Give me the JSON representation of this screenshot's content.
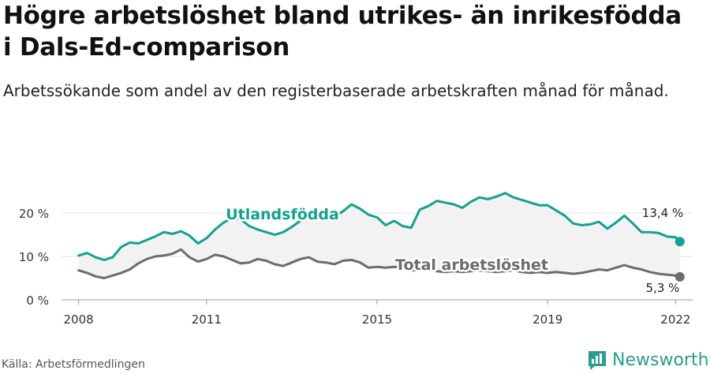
{
  "title": "Högre arbetslöshet bland utrikes- än inrikesfödda i Dals-Ed-comparison",
  "subtitle": "Arbetssökande som andel av den registerbaserade arbetskraften månad för månad.",
  "source": "Källa: Arbetsförmedlingen",
  "brand": {
    "name": "Newsworthy",
    "icon": "newsworthy-logo-icon"
  },
  "colors": {
    "foreign_born": "#14a092",
    "total": "#6b6b70",
    "area_fill": "#f2f2f2",
    "grid": "#e3e3e3"
  },
  "chart_data": {
    "type": "line",
    "x_ticks": [
      "2008",
      "2011",
      "2015",
      "2019",
      "2022"
    ],
    "y_ticks": [
      "0 %",
      "10 %",
      "20 %"
    ],
    "ylim": [
      0,
      30
    ],
    "xlim": [
      2007.6,
      2022.4
    ],
    "grid": "horizontal",
    "series": [
      {
        "name": "Utlandsfödda",
        "end_label": "13,4 %",
        "points": [
          [
            2008.0,
            10.2
          ],
          [
            2008.2,
            10.8
          ],
          [
            2008.4,
            9.8
          ],
          [
            2008.6,
            9.2
          ],
          [
            2008.8,
            9.8
          ],
          [
            2009.0,
            12.2
          ],
          [
            2009.2,
            13.2
          ],
          [
            2009.4,
            13.0
          ],
          [
            2009.6,
            13.8
          ],
          [
            2009.8,
            14.6
          ],
          [
            2010.0,
            15.6
          ],
          [
            2010.2,
            15.2
          ],
          [
            2010.4,
            15.8
          ],
          [
            2010.6,
            14.8
          ],
          [
            2010.8,
            13.0
          ],
          [
            2011.0,
            14.2
          ],
          [
            2011.2,
            16.2
          ],
          [
            2011.4,
            17.8
          ],
          [
            2011.6,
            18.8
          ],
          [
            2011.8,
            18.6
          ],
          [
            2012.0,
            17.0
          ],
          [
            2012.2,
            16.2
          ],
          [
            2012.4,
            15.6
          ],
          [
            2012.6,
            15.0
          ],
          [
            2012.8,
            15.6
          ],
          [
            2013.0,
            16.8
          ],
          [
            2013.2,
            18.2
          ],
          [
            2013.4,
            19.6
          ],
          [
            2013.6,
            19.0
          ],
          [
            2013.8,
            18.8
          ],
          [
            2014.0,
            19.2
          ],
          [
            2014.2,
            20.4
          ],
          [
            2014.4,
            22.0
          ],
          [
            2014.6,
            21.0
          ],
          [
            2014.8,
            19.6
          ],
          [
            2015.0,
            19.0
          ],
          [
            2015.2,
            17.2
          ],
          [
            2015.4,
            18.2
          ],
          [
            2015.6,
            17.0
          ],
          [
            2015.8,
            16.6
          ],
          [
            2016.0,
            20.8
          ],
          [
            2016.2,
            21.6
          ],
          [
            2016.4,
            22.8
          ],
          [
            2016.6,
            22.4
          ],
          [
            2016.8,
            22.0
          ],
          [
            2017.0,
            21.2
          ],
          [
            2017.2,
            22.6
          ],
          [
            2017.4,
            23.6
          ],
          [
            2017.6,
            23.2
          ],
          [
            2017.8,
            23.8
          ],
          [
            2018.0,
            24.6
          ],
          [
            2018.2,
            23.6
          ],
          [
            2018.4,
            23.0
          ],
          [
            2018.6,
            22.4
          ],
          [
            2018.8,
            21.8
          ],
          [
            2019.0,
            21.8
          ],
          [
            2019.2,
            20.6
          ],
          [
            2019.4,
            19.4
          ],
          [
            2019.6,
            17.6
          ],
          [
            2019.8,
            17.2
          ],
          [
            2020.0,
            17.4
          ],
          [
            2020.2,
            18.0
          ],
          [
            2020.4,
            16.4
          ],
          [
            2020.6,
            17.8
          ],
          [
            2020.8,
            19.4
          ],
          [
            2021.0,
            17.6
          ],
          [
            2021.2,
            15.6
          ],
          [
            2021.4,
            15.6
          ],
          [
            2021.6,
            15.4
          ],
          [
            2021.8,
            14.6
          ],
          [
            2022.0,
            14.4
          ],
          [
            2022.1,
            13.4
          ]
        ]
      },
      {
        "name": "Total arbetslöshet",
        "end_label": "5,3 %",
        "points": [
          [
            2008.0,
            6.8
          ],
          [
            2008.2,
            6.2
          ],
          [
            2008.4,
            5.4
          ],
          [
            2008.6,
            5.0
          ],
          [
            2008.8,
            5.6
          ],
          [
            2009.0,
            6.2
          ],
          [
            2009.2,
            7.0
          ],
          [
            2009.4,
            8.4
          ],
          [
            2009.6,
            9.4
          ],
          [
            2009.8,
            10.0
          ],
          [
            2010.0,
            10.2
          ],
          [
            2010.2,
            10.6
          ],
          [
            2010.4,
            11.6
          ],
          [
            2010.6,
            9.8
          ],
          [
            2010.8,
            8.8
          ],
          [
            2011.0,
            9.4
          ],
          [
            2011.2,
            10.4
          ],
          [
            2011.4,
            10.0
          ],
          [
            2011.6,
            9.2
          ],
          [
            2011.8,
            8.4
          ],
          [
            2012.0,
            8.6
          ],
          [
            2012.2,
            9.4
          ],
          [
            2012.4,
            9.0
          ],
          [
            2012.6,
            8.2
          ],
          [
            2012.8,
            7.8
          ],
          [
            2013.0,
            8.6
          ],
          [
            2013.2,
            9.4
          ],
          [
            2013.4,
            9.8
          ],
          [
            2013.6,
            8.8
          ],
          [
            2013.8,
            8.6
          ],
          [
            2014.0,
            8.2
          ],
          [
            2014.2,
            9.0
          ],
          [
            2014.4,
            9.2
          ],
          [
            2014.6,
            8.6
          ],
          [
            2014.8,
            7.4
          ],
          [
            2015.0,
            7.6
          ],
          [
            2015.2,
            7.4
          ],
          [
            2015.4,
            7.6
          ],
          [
            2015.6,
            7.4
          ],
          [
            2015.8,
            6.8
          ],
          [
            2016.0,
            6.8
          ],
          [
            2016.2,
            7.0
          ],
          [
            2016.4,
            6.6
          ],
          [
            2016.6,
            6.4
          ],
          [
            2016.8,
            6.6
          ],
          [
            2017.0,
            6.4
          ],
          [
            2017.2,
            6.6
          ],
          [
            2017.4,
            6.8
          ],
          [
            2017.6,
            6.6
          ],
          [
            2017.8,
            6.4
          ],
          [
            2018.0,
            6.6
          ],
          [
            2018.2,
            6.8
          ],
          [
            2018.4,
            6.4
          ],
          [
            2018.6,
            6.2
          ],
          [
            2018.8,
            6.4
          ],
          [
            2019.0,
            6.2
          ],
          [
            2019.2,
            6.4
          ],
          [
            2019.4,
            6.2
          ],
          [
            2019.6,
            6.0
          ],
          [
            2019.8,
            6.2
          ],
          [
            2020.0,
            6.6
          ],
          [
            2020.2,
            7.0
          ],
          [
            2020.4,
            6.8
          ],
          [
            2020.6,
            7.4
          ],
          [
            2020.8,
            8.0
          ],
          [
            2021.0,
            7.4
          ],
          [
            2021.2,
            7.0
          ],
          [
            2021.4,
            6.4
          ],
          [
            2021.6,
            6.0
          ],
          [
            2021.8,
            5.8
          ],
          [
            2022.0,
            5.6
          ],
          [
            2022.1,
            5.3
          ]
        ]
      }
    ]
  }
}
